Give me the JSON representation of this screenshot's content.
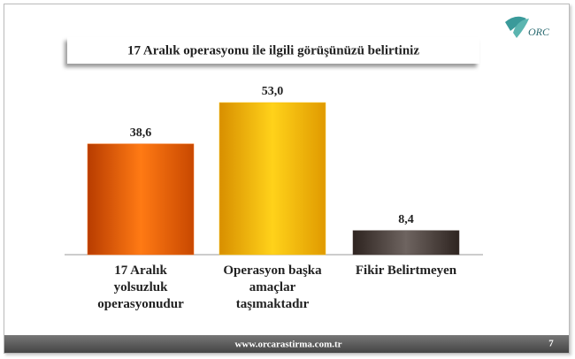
{
  "logo": "ORC",
  "chart_data": {
    "type": "bar",
    "title": "17 Aralık operasyonu ile ilgili görüşünüzü belirtiniz",
    "categories": [
      "17 Aralık yolsuzluk operasyonudur",
      "Operasyon başka amaçlar taşımaktadır",
      "Fikir Belirtmeyen"
    ],
    "values": [
      38.6,
      53.0,
      8.4
    ],
    "value_labels": [
      "38,6",
      "53,0",
      "8,4"
    ],
    "colors": [
      "#f26a10",
      "#f7bf0a",
      "#4a3f3a"
    ]
  },
  "footer": {
    "url": "www.orcarastirma.com.tr",
    "page": "7"
  }
}
